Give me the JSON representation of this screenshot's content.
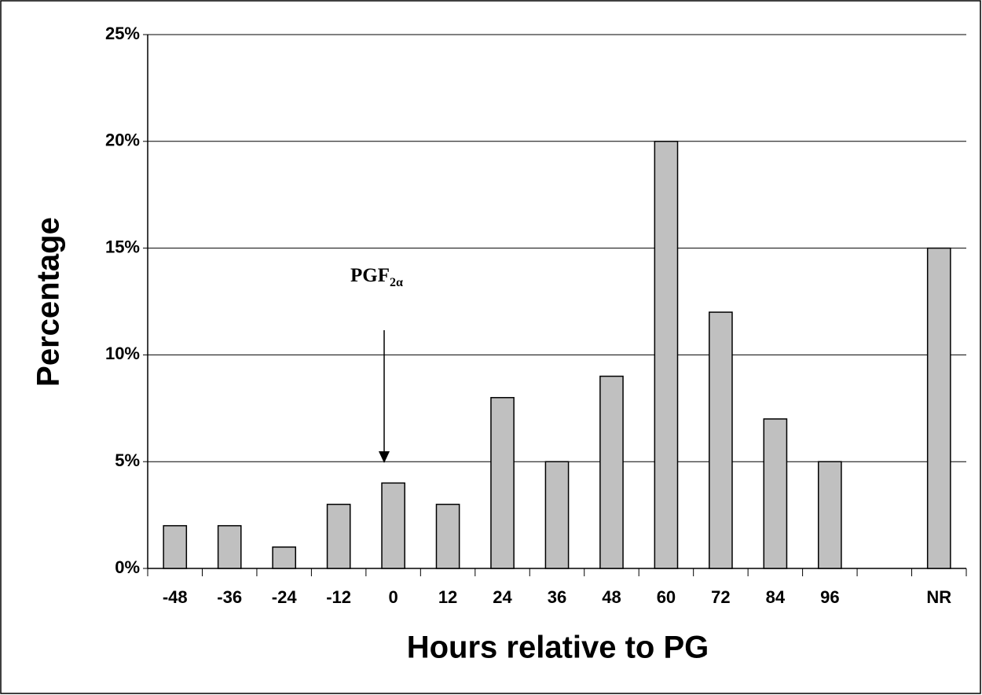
{
  "chart_data": {
    "type": "bar",
    "x_label": "Hours relative to PG",
    "y_label": "Percentage",
    "annotation": {
      "text": "PGF",
      "subscript": "2α"
    },
    "categories": [
      "-48",
      "-36",
      "-24",
      "-12",
      "0",
      "12",
      "24",
      "36",
      "48",
      "60",
      "72",
      "84",
      "96",
      null,
      "NR"
    ],
    "values": [
      2,
      2,
      1,
      3,
      4,
      3,
      8,
      5,
      9,
      20,
      12,
      7,
      5,
      null,
      15
    ],
    "color": "#c0c0c0",
    "ylim": [
      0,
      25
    ],
    "yticks": [
      {
        "value": 0,
        "label": "0%"
      },
      {
        "value": 5,
        "label": "5%"
      },
      {
        "value": 10,
        "label": "10%"
      },
      {
        "value": 15,
        "label": "15%"
      },
      {
        "value": 20,
        "label": "20%"
      },
      {
        "value": 25,
        "label": "25%"
      }
    ],
    "grid": true
  }
}
